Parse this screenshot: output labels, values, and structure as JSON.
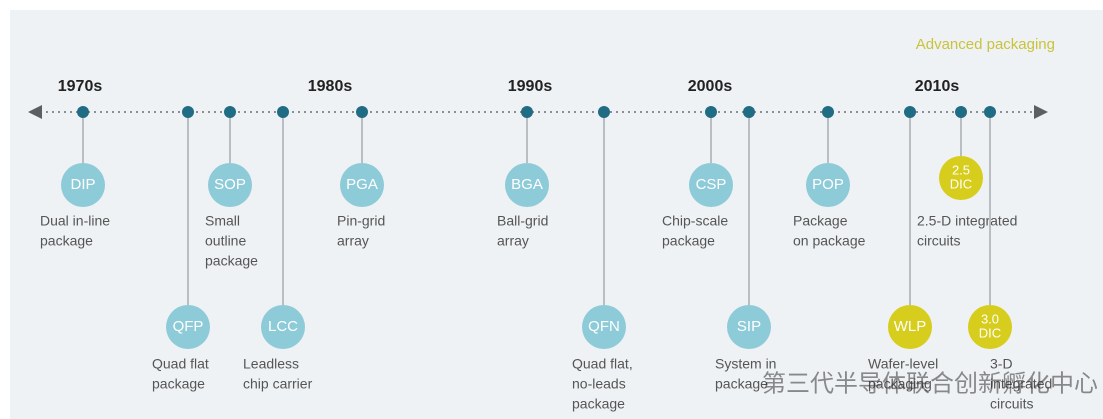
{
  "title": "Advanced packaging",
  "decades": [
    "1970s",
    "1980s",
    "1990s",
    "2000s",
    "2010s"
  ],
  "nodes": [
    {
      "abbr": [
        "DIP"
      ],
      "label": [
        "Dual in-line",
        "package"
      ]
    },
    {
      "abbr": [
        "QFP"
      ],
      "label": [
        "Quad flat",
        "package"
      ]
    },
    {
      "abbr": [
        "SOP"
      ],
      "label": [
        "Small",
        "outline",
        "package"
      ]
    },
    {
      "abbr": [
        "LCC"
      ],
      "label": [
        "Leadless",
        "chip carrier"
      ]
    },
    {
      "abbr": [
        "PGA"
      ],
      "label": [
        "Pin-grid",
        "array"
      ]
    },
    {
      "abbr": [
        "BGA"
      ],
      "label": [
        "Ball-grid",
        "array"
      ]
    },
    {
      "abbr": [
        "QFN"
      ],
      "label": [
        "Quad flat,",
        "no-leads",
        "package"
      ]
    },
    {
      "abbr": [
        "CSP"
      ],
      "label": [
        "Chip-scale",
        "package"
      ]
    },
    {
      "abbr": [
        "SIP"
      ],
      "label": [
        "System in",
        "package"
      ]
    },
    {
      "abbr": [
        "POP"
      ],
      "label": [
        "Package",
        "on package"
      ]
    },
    {
      "abbr": [
        "WLP"
      ],
      "label": [
        "Wafer-level",
        "packaging"
      ]
    },
    {
      "abbr": [
        "2.5",
        "DIC"
      ],
      "label": [
        "2.5-D integrated",
        "circuits"
      ]
    },
    {
      "abbr": [
        "3.0",
        "DIC"
      ],
      "label": [
        "3-D",
        "integrated",
        "circuits"
      ]
    }
  ],
  "watermark": "第三代半导体联合创新孵化中心"
}
